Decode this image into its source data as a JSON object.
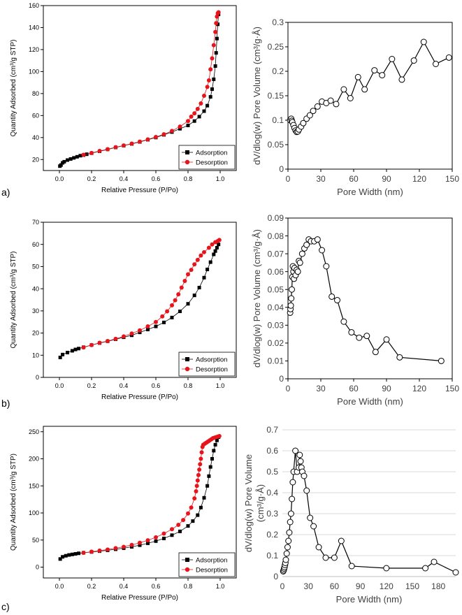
{
  "panels": [
    {
      "label": "a)"
    },
    {
      "label": "b)"
    },
    {
      "label": "c)"
    }
  ],
  "chart_data": [
    {
      "type": "scatter",
      "panel": "a",
      "title": "",
      "xlabel": "Relative Pressure (P/Po)",
      "ylabel": "Quantity Adsorbed (cm³/g STP)",
      "xlim": [
        -0.1,
        1.1
      ],
      "ylim": [
        10,
        160
      ],
      "xticks": [
        0.0,
        0.2,
        0.4,
        0.6,
        0.8,
        1.0
      ],
      "xtick_labels": [
        "0.0",
        "0.2",
        "0.4",
        "0.6",
        "0.8",
        "1.0"
      ],
      "yticks": [
        20,
        40,
        60,
        80,
        100,
        120,
        140,
        160
      ],
      "ytick_labels": [
        "20",
        "40",
        "60",
        "80",
        "100",
        "120",
        "140",
        "160"
      ],
      "grid": false,
      "legend": "bottom-right",
      "series": [
        {
          "name": "Adsorption",
          "color": "#000000",
          "marker": "square",
          "x": [
            0.003,
            0.01,
            0.02,
            0.03,
            0.05,
            0.07,
            0.09,
            0.11,
            0.13,
            0.15,
            0.17,
            0.2,
            0.25,
            0.3,
            0.35,
            0.4,
            0.45,
            0.5,
            0.55,
            0.6,
            0.65,
            0.7,
            0.75,
            0.8,
            0.84,
            0.87,
            0.9,
            0.92,
            0.94,
            0.95,
            0.96,
            0.97,
            0.975,
            0.98,
            0.985,
            0.99
          ],
          "y": [
            14,
            15,
            17,
            18,
            19.5,
            20.5,
            21.5,
            22.5,
            23.5,
            24,
            24.8,
            25.8,
            27.5,
            29.2,
            31,
            32.6,
            34.2,
            36,
            38,
            40,
            42.5,
            45,
            48,
            51,
            55,
            59,
            64,
            69,
            77,
            84,
            93,
            105,
            117,
            130,
            143,
            152
          ]
        },
        {
          "name": "Desorption",
          "color": "#e8141b",
          "marker": "circle",
          "x": [
            0.99,
            0.985,
            0.98,
            0.975,
            0.97,
            0.96,
            0.95,
            0.94,
            0.93,
            0.92,
            0.9,
            0.88,
            0.86,
            0.84,
            0.82,
            0.8,
            0.75,
            0.7,
            0.65,
            0.6,
            0.55,
            0.5,
            0.45,
            0.4,
            0.35,
            0.3,
            0.25,
            0.2,
            0.15
          ],
          "y": [
            154,
            153,
            150,
            144,
            136,
            124,
            112,
            102,
            92,
            86,
            78,
            71,
            66,
            62,
            59,
            55,
            50,
            46,
            43,
            40.5,
            38.3,
            36.3,
            34.5,
            32.8,
            31.2,
            29.4,
            27.8,
            26,
            24.3
          ]
        }
      ]
    },
    {
      "type": "line",
      "panel": "a",
      "title": "",
      "xlabel": "Pore Width (nm)",
      "ylabel": "dV/dlog(w) Pore Volume (cm³/g·Å)",
      "xlim": [
        0,
        150
      ],
      "ylim": [
        0,
        0.3
      ],
      "xticks": [
        0,
        30,
        60,
        90,
        120,
        150
      ],
      "xtick_labels": [
        "0",
        "30",
        "60",
        "90",
        "120",
        "150"
      ],
      "yticks": [
        0,
        0.05,
        0.1,
        0.15,
        0.2,
        0.25,
        0.3
      ],
      "ytick_labels": [
        "0",
        "0.05",
        "0.1",
        "0.15",
        "0.2",
        "0.25",
        "0.3"
      ],
      "grid": false,
      "series": [
        {
          "name": "PSD",
          "color": "#000000",
          "marker": "open-circle",
          "x": [
            2,
            3,
            3.5,
            4,
            5,
            6,
            7,
            8,
            9,
            10,
            12,
            14,
            17,
            20,
            23,
            27,
            31,
            35,
            39,
            44,
            51,
            57,
            64,
            70,
            79,
            86,
            95,
            104,
            115,
            124,
            135,
            147
          ],
          "y": [
            0.1,
            0.103,
            0.099,
            0.096,
            0.09,
            0.084,
            0.079,
            0.076,
            0.077,
            0.081,
            0.087,
            0.094,
            0.103,
            0.11,
            0.119,
            0.128,
            0.138,
            0.135,
            0.14,
            0.133,
            0.163,
            0.145,
            0.188,
            0.163,
            0.202,
            0.192,
            0.225,
            0.183,
            0.222,
            0.26,
            0.215,
            0.228
          ]
        }
      ]
    },
    {
      "type": "scatter",
      "panel": "b",
      "title": "",
      "xlabel": "Relative Pressure (P/Po)",
      "ylabel": "Quantity Adsorbed (cm³/g STP)",
      "xlim": [
        -0.1,
        1.1
      ],
      "ylim": [
        0,
        70
      ],
      "xticks": [
        0.0,
        0.2,
        0.4,
        0.6,
        0.8,
        1.0
      ],
      "xtick_labels": [
        "0.0",
        "0.2",
        "0.4",
        "0.6",
        "0.8",
        "1.0"
      ],
      "yticks": [
        0,
        10,
        20,
        30,
        40,
        50,
        60,
        70
      ],
      "ytick_labels": [
        "0",
        "10",
        "20",
        "30",
        "40",
        "50",
        "60",
        "70"
      ],
      "grid": false,
      "legend": "bottom-right",
      "series": [
        {
          "name": "Adsorption",
          "color": "#000000",
          "marker": "square",
          "x": [
            0.005,
            0.02,
            0.05,
            0.08,
            0.1,
            0.12,
            0.15,
            0.2,
            0.25,
            0.3,
            0.35,
            0.4,
            0.45,
            0.5,
            0.55,
            0.6,
            0.65,
            0.7,
            0.75,
            0.8,
            0.84,
            0.87,
            0.9,
            0.92,
            0.94,
            0.96,
            0.97,
            0.98,
            0.99
          ],
          "y": [
            9,
            10.3,
            11.2,
            12,
            12.6,
            13,
            13.6,
            14.6,
            15.5,
            16.3,
            17.2,
            18.1,
            19,
            20.3,
            21.6,
            23,
            24.8,
            27,
            29.8,
            33.2,
            37,
            40.5,
            45,
            48.7,
            52,
            55.5,
            57,
            58.5,
            60
          ]
        },
        {
          "name": "Desorption",
          "color": "#e8141b",
          "marker": "circle",
          "x": [
            0.995,
            0.985,
            0.97,
            0.95,
            0.93,
            0.9,
            0.88,
            0.86,
            0.84,
            0.82,
            0.8,
            0.78,
            0.76,
            0.74,
            0.72,
            0.7,
            0.67,
            0.64,
            0.6,
            0.55,
            0.5,
            0.45,
            0.4,
            0.35,
            0.3,
            0.25,
            0.2,
            0.15
          ],
          "y": [
            62,
            61.5,
            61,
            60,
            58.5,
            56.5,
            55,
            53,
            51,
            48.5,
            46.5,
            43.5,
            40.5,
            37.5,
            34.8,
            32.5,
            29.8,
            27.5,
            25,
            23,
            21.2,
            19.8,
            18.5,
            17.4,
            16.4,
            15.6,
            14.6,
            13.5
          ]
        }
      ]
    },
    {
      "type": "line",
      "panel": "b",
      "title": "",
      "xlabel": "Pore Width (nm)",
      "ylabel": "dV/dlog(w) Pore Volume (cm³/g·Å)",
      "xlim": [
        0,
        150
      ],
      "ylim": [
        0,
        0.09
      ],
      "xticks": [
        0,
        30,
        60,
        90,
        120,
        150
      ],
      "xtick_labels": [
        "0",
        "30",
        "60",
        "90",
        "120",
        "150"
      ],
      "yticks": [
        0,
        0.01,
        0.02,
        0.03,
        0.04,
        0.05,
        0.06,
        0.07,
        0.08,
        0.09
      ],
      "ytick_labels": [
        "0",
        "0.01",
        "0.02",
        "0.03",
        "0.04",
        "0.05",
        "0.06",
        "0.07",
        "0.08",
        "0.09"
      ],
      "grid": false,
      "series": [
        {
          "name": "PSD",
          "color": "#000000",
          "marker": "open-circle",
          "x": [
            2,
            2.3,
            2.6,
            3,
            3.5,
            4,
            4.5,
            5,
            5.5,
            6,
            7,
            8,
            9,
            10,
            11,
            13,
            15,
            17,
            19,
            21,
            24,
            27,
            31,
            35,
            40,
            45,
            51,
            58,
            65,
            72,
            80,
            90,
            102,
            140
          ],
          "y": [
            0.037,
            0.039,
            0.041,
            0.045,
            0.05,
            0.057,
            0.063,
            0.06,
            0.056,
            0.062,
            0.058,
            0.061,
            0.06,
            0.066,
            0.065,
            0.07,
            0.073,
            0.075,
            0.078,
            0.077,
            0.077,
            0.078,
            0.072,
            0.063,
            0.046,
            0.044,
            0.032,
            0.026,
            0.023,
            0.024,
            0.015,
            0.022,
            0.012,
            0.01
          ]
        }
      ]
    },
    {
      "type": "scatter",
      "panel": "c",
      "title": "",
      "xlabel": "Relative Pressure (P/Po)",
      "ylabel": "Quantity Adsorbed (cm³/g STP)",
      "xlim": [
        -0.1,
        1.1
      ],
      "ylim": [
        -20,
        260
      ],
      "xticks": [
        0.0,
        0.2,
        0.4,
        0.6,
        0.8,
        1.0
      ],
      "xtick_labels": [
        "0.0",
        "0.2",
        "0.4",
        "0.6",
        "0.8",
        "1.0"
      ],
      "yticks": [
        0,
        50,
        100,
        150,
        200,
        250
      ],
      "ytick_labels": [
        "0",
        "50",
        "100",
        "150",
        "200",
        "250"
      ],
      "grid": false,
      "legend": "bottom-right",
      "series": [
        {
          "name": "Adsorption",
          "color": "#000000",
          "marker": "square",
          "x": [
            0.005,
            0.02,
            0.04,
            0.06,
            0.08,
            0.1,
            0.12,
            0.15,
            0.2,
            0.25,
            0.3,
            0.35,
            0.4,
            0.45,
            0.5,
            0.55,
            0.6,
            0.65,
            0.7,
            0.75,
            0.8,
            0.83,
            0.86,
            0.88,
            0.9,
            0.92,
            0.93,
            0.94,
            0.95,
            0.96,
            0.97,
            0.98,
            0.99
          ],
          "y": [
            15,
            19,
            21,
            22.5,
            23.5,
            24.5,
            25.5,
            26.5,
            28,
            29.5,
            31,
            33,
            35,
            37.5,
            40.5,
            44,
            48,
            53,
            59,
            66,
            76,
            85,
            96,
            110,
            128,
            150,
            168,
            185,
            200,
            215,
            226,
            234,
            240
          ]
        },
        {
          "name": "Desorption",
          "color": "#e8141b",
          "marker": "circle",
          "x": [
            0.995,
            0.985,
            0.975,
            0.965,
            0.955,
            0.945,
            0.935,
            0.925,
            0.915,
            0.905,
            0.895,
            0.89,
            0.885,
            0.88,
            0.875,
            0.87,
            0.865,
            0.86,
            0.855,
            0.85,
            0.84,
            0.82,
            0.8,
            0.77,
            0.74,
            0.7,
            0.65,
            0.6,
            0.55,
            0.5,
            0.45,
            0.4,
            0.35,
            0.3,
            0.25,
            0.2,
            0.15
          ],
          "y": [
            242,
            241,
            240,
            239,
            238,
            236,
            234,
            232,
            230,
            228,
            226,
            222,
            212,
            200,
            190,
            180,
            170,
            160,
            150,
            140,
            127,
            110,
            99,
            87,
            78,
            70,
            62,
            55,
            49.5,
            45,
            41,
            37.5,
            35,
            32.5,
            30.5,
            28.5,
            26.5
          ]
        }
      ]
    },
    {
      "type": "line",
      "panel": "c",
      "title": "",
      "xlabel": "Pore Width (nm)",
      "ylabel": "dV/dlog(w) Pore Volume (cm³/g·Å)",
      "ylabel_lines": [
        "dV/dlog(w) Pore Volume",
        "(cm³/g·Å)"
      ],
      "xlim": [
        0,
        200
      ],
      "ylim": [
        0,
        0.7
      ],
      "xticks": [
        0,
        30,
        60,
        90,
        120,
        150,
        180
      ],
      "xtick_labels": [
        "0",
        "30",
        "60",
        "90",
        "120",
        "150",
        "180"
      ],
      "yticks": [
        0,
        0.1,
        0.2,
        0.3,
        0.4,
        0.5,
        0.6,
        0.7
      ],
      "ytick_labels": [
        "0",
        "0.1",
        "0.2",
        "0.3",
        "0.4",
        "0.5",
        "0.6",
        "0.7"
      ],
      "grid": "horizontal",
      "series": [
        {
          "name": "PSD",
          "color": "#000000",
          "marker": "open-circle",
          "x": [
            1,
            1.5,
            2,
            2.5,
            3,
            3.5,
            4,
            5,
            6,
            7,
            8,
            9,
            10,
            11,
            12,
            13,
            15,
            17,
            19,
            20,
            21,
            22,
            23,
            25,
            28,
            32,
            36,
            42,
            50,
            60,
            68,
            80,
            120,
            165,
            175,
            200
          ],
          "y": [
            0.025,
            0.03,
            0.038,
            0.045,
            0.055,
            0.065,
            0.08,
            0.11,
            0.14,
            0.17,
            0.21,
            0.26,
            0.3,
            0.37,
            0.45,
            0.5,
            0.6,
            0.5,
            0.52,
            0.58,
            0.55,
            0.52,
            0.5,
            0.48,
            0.41,
            0.28,
            0.24,
            0.14,
            0.09,
            0.09,
            0.17,
            0.05,
            0.04,
            0.04,
            0.07,
            0.02
          ]
        }
      ]
    }
  ]
}
